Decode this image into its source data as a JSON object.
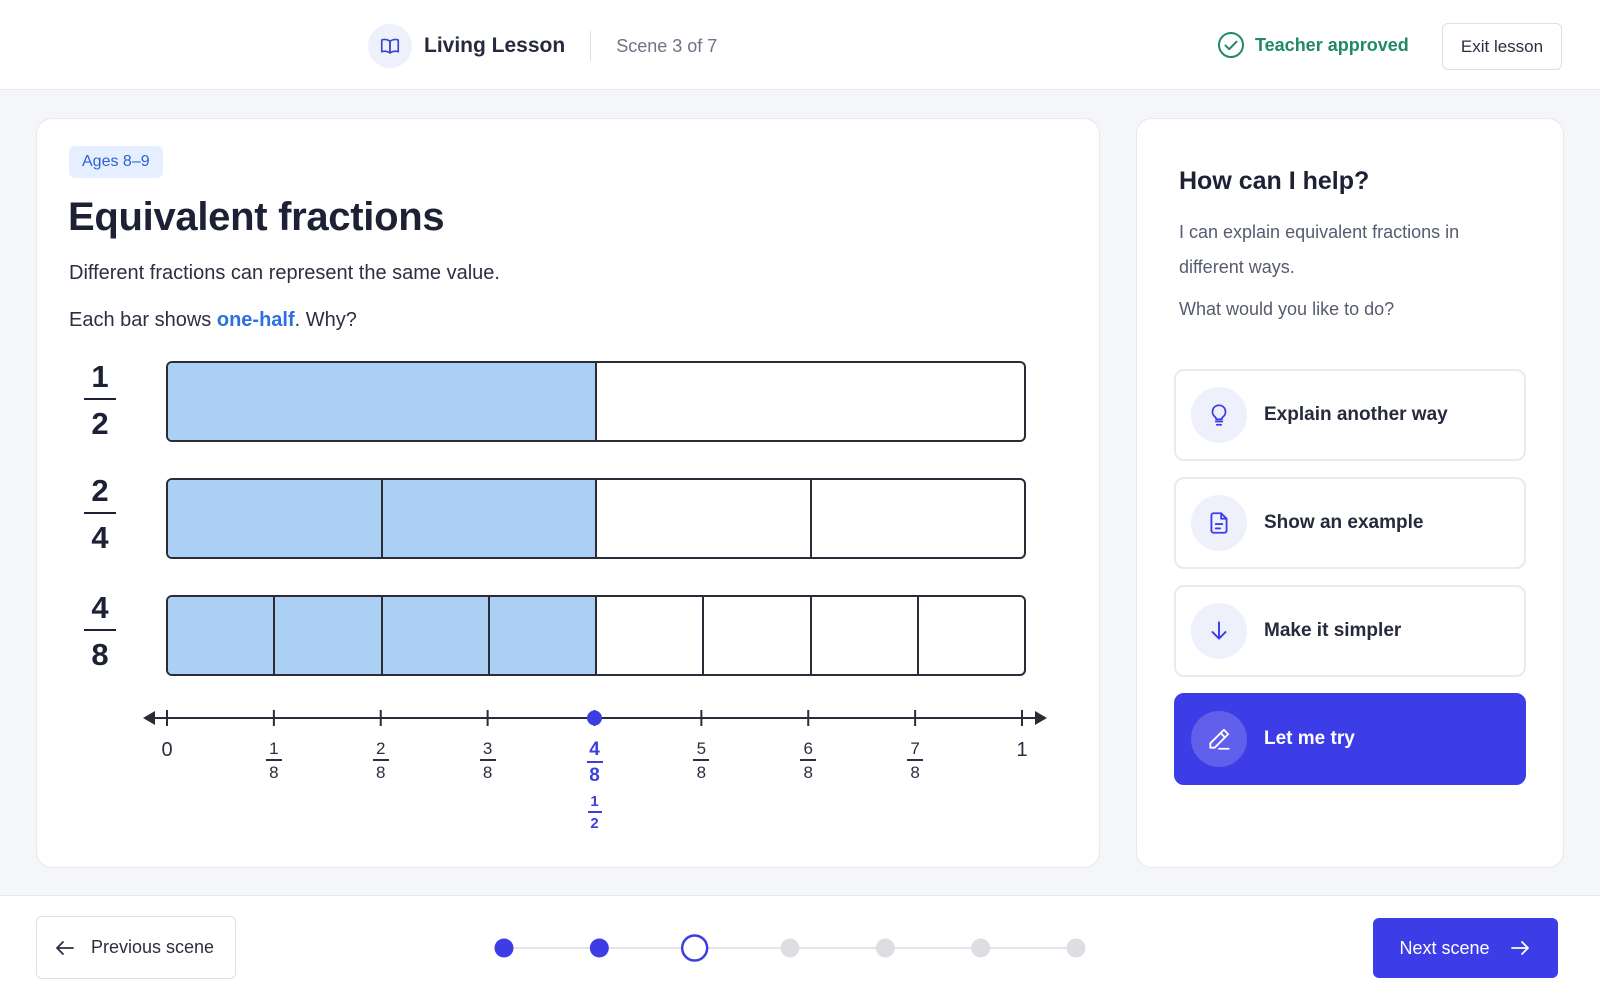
{
  "header": {
    "app_name": "Living Lesson",
    "scene_counter": "Scene 3 of 7",
    "approval_status": "Teacher approved",
    "exit_label": "Exit lesson"
  },
  "lesson": {
    "age_badge": "Ages 8–9",
    "title": "Equivalent fractions",
    "description": "Different fractions can represent the same value.",
    "question_prefix": "Each bar shows ",
    "question_highlight": "one-half",
    "question_suffix": ". Why?",
    "bars": [
      {
        "numerator": "1",
        "denominator": "2",
        "parts": 2,
        "filled": 1
      },
      {
        "numerator": "2",
        "denominator": "4",
        "parts": 4,
        "filled": 2
      },
      {
        "numerator": "4",
        "denominator": "8",
        "parts": 8,
        "filled": 4
      }
    ],
    "number_line": {
      "start_label": "0",
      "end_label": "1",
      "ticks": [
        {
          "n": "1",
          "d": "8"
        },
        {
          "n": "2",
          "d": "8"
        },
        {
          "n": "3",
          "d": "8"
        },
        {
          "n": "4",
          "d": "8"
        },
        {
          "n": "5",
          "d": "8"
        },
        {
          "n": "6",
          "d": "8"
        },
        {
          "n": "7",
          "d": "8"
        }
      ],
      "marked_value": 0.5,
      "marked_equivalent": {
        "n": "1",
        "d": "2"
      },
      "accent_color": "#3b3fe0"
    }
  },
  "help": {
    "title": "How can I help?",
    "intro": "I can explain equivalent fractions in different ways.",
    "ask": "What would you like to do?",
    "options": [
      {
        "label": "Explain another way",
        "icon": "lightbulb-icon"
      },
      {
        "label": "Show an example",
        "icon": "document-icon"
      },
      {
        "label": "Make it simpler",
        "icon": "arrow-down-icon"
      },
      {
        "label": "Let me try",
        "icon": "pencil-icon"
      }
    ]
  },
  "footer": {
    "prev_label": "Previous scene",
    "next_label": "Next scene",
    "progress": {
      "total": 7,
      "completed": 2,
      "current": 3
    }
  },
  "colors": {
    "primary": "#3d3de8",
    "fill": "#acd0f3",
    "approved": "#1f8a63",
    "badge_text": "#2f5fd2"
  }
}
